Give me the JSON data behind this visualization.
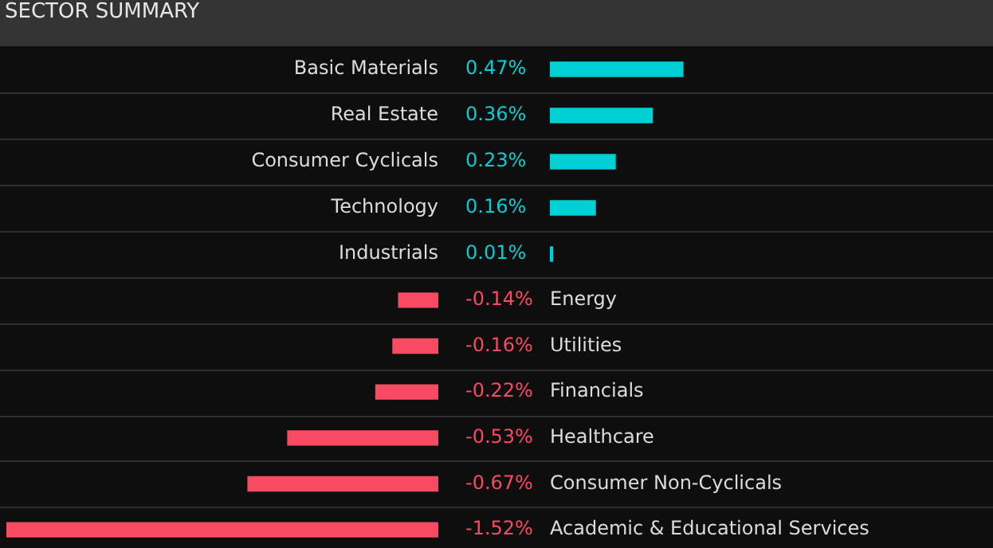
{
  "chart_data": [
    {
      "type": "bar",
      "orientation": "horizontal",
      "title": "SECTOR SUMMARY",
      "categories": [
        "Basic Materials",
        "Real Estate",
        "Consumer Cyclicals",
        "Technology",
        "Industrials"
      ],
      "values": [
        0.47,
        0.36,
        0.23,
        0.16,
        0.01
      ],
      "value_labels": [
        "0.47%",
        "0.36%",
        "0.23%",
        "0.16%",
        "0.01%"
      ],
      "colors": [
        "#00cfd4",
        "#00cfd4",
        "#00cfd4",
        "#00cfd4",
        "#00cfd4"
      ],
      "grid": "y",
      "legend": false
    },
    {
      "type": "bar",
      "orientation": "horizontal",
      "categories": [
        "Energy",
        "Utilities",
        "Financials",
        "Healthcare",
        "Consumer Non-Cyclicals",
        "Academic & Educational Services"
      ],
      "values": [
        -0.14,
        -0.16,
        -0.22,
        -0.53,
        -0.67,
        -1.52
      ],
      "value_labels": [
        "-0.14%",
        "-0.16%",
        "-0.22%",
        "-0.53%",
        "-0.67%",
        "-1.52%"
      ],
      "colors": [
        "#f84a60",
        "#f84a60",
        "#f84a60",
        "#f84a60",
        "#f84a60",
        "#f84a60"
      ],
      "grid": "y",
      "legend": false
    }
  ]
}
